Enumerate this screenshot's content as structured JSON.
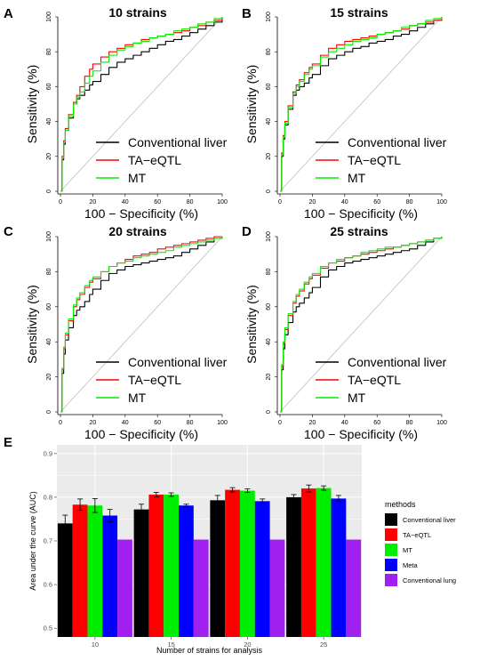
{
  "figure": {
    "colors": {
      "conventional_liver": "#000000",
      "ta_eqtl": "#ff0000",
      "mt": "#00ee00",
      "meta": "#0000ff",
      "conventional_lung": "#a020f0",
      "diagonal": "#bebebe",
      "panel_bg": "#ebebeb",
      "grid": "#ffffff"
    }
  },
  "chart_data": [
    {
      "type": "line",
      "panel": "A",
      "title": "10 strains",
      "xlabel": "100 − Specificity (%)",
      "ylabel": "Sensitivity (%)",
      "xlim": [
        0,
        100
      ],
      "ylim": [
        0,
        100
      ],
      "x_ticks": [
        "0",
        "20",
        "40",
        "60",
        "80",
        "100"
      ],
      "y_ticks": [
        "0",
        "20",
        "40",
        "60",
        "80",
        "100"
      ],
      "legend": [
        "Conventional liver",
        "TA−eQTL",
        "MT"
      ],
      "legend_position": "bottom-right",
      "series": [
        {
          "name": "Conventional liver",
          "color": "#000000",
          "x": [
            0,
            1,
            2,
            3,
            5,
            8,
            10,
            12,
            15,
            18,
            20,
            25,
            30,
            35,
            40,
            45,
            50,
            55,
            60,
            65,
            70,
            75,
            80,
            85,
            90,
            95,
            100
          ],
          "y": [
            0,
            18,
            27,
            35,
            42,
            50,
            53,
            55,
            58,
            61,
            63,
            67,
            71,
            74,
            76,
            78,
            80,
            82,
            84,
            86,
            87,
            89,
            91,
            93,
            95,
            97,
            100
          ]
        },
        {
          "name": "TA−eQTL",
          "color": "#ff0000",
          "x": [
            0,
            1,
            2,
            3,
            5,
            8,
            10,
            12,
            15,
            18,
            20,
            25,
            30,
            35,
            40,
            45,
            50,
            55,
            60,
            65,
            70,
            75,
            80,
            85,
            90,
            95,
            100
          ],
          "y": [
            0,
            20,
            29,
            36,
            44,
            51,
            55,
            60,
            66,
            70,
            73,
            77,
            80,
            82,
            84,
            85,
            87,
            88,
            89,
            90,
            91,
            92,
            94,
            95,
            97,
            98,
            100
          ]
        },
        {
          "name": "MT",
          "color": "#00ee00",
          "x": [
            0,
            1,
            2,
            3,
            5,
            8,
            10,
            12,
            15,
            18,
            20,
            25,
            30,
            35,
            40,
            45,
            50,
            55,
            60,
            65,
            70,
            75,
            80,
            85,
            90,
            95,
            100
          ],
          "y": [
            0,
            19,
            28,
            35,
            43,
            50,
            54,
            57,
            62,
            66,
            69,
            74,
            78,
            81,
            83,
            85,
            86,
            88,
            89,
            90,
            92,
            93,
            94,
            96,
            97,
            99,
            100
          ]
        }
      ]
    },
    {
      "type": "line",
      "panel": "B",
      "title": "15 strains",
      "xlabel": "100 − Specificity (%)",
      "ylabel": "Sensitivity (%)",
      "xlim": [
        0,
        100
      ],
      "ylim": [
        0,
        100
      ],
      "x_ticks": [
        "0",
        "20",
        "40",
        "60",
        "80",
        "100"
      ],
      "y_ticks": [
        "0",
        "20",
        "40",
        "60",
        "80",
        "100"
      ],
      "legend": [
        "Conventional liver",
        "TA−eQTL",
        "MT"
      ],
      "legend_position": "bottom-right",
      "series": [
        {
          "name": "Conventional liver",
          "color": "#000000",
          "x": [
            0,
            1,
            2,
            3,
            5,
            8,
            10,
            12,
            15,
            18,
            20,
            25,
            30,
            35,
            40,
            45,
            50,
            55,
            60,
            65,
            70,
            75,
            80,
            85,
            90,
            95,
            100
          ],
          "y": [
            0,
            20,
            30,
            38,
            47,
            55,
            58,
            60,
            62,
            65,
            67,
            72,
            76,
            78,
            80,
            82,
            83,
            85,
            86,
            87,
            89,
            90,
            92,
            94,
            96,
            98,
            100
          ]
        },
        {
          "name": "TA−eQTL",
          "color": "#ff0000",
          "x": [
            0,
            1,
            2,
            3,
            5,
            8,
            10,
            12,
            15,
            18,
            20,
            25,
            30,
            35,
            40,
            45,
            50,
            55,
            60,
            65,
            70,
            75,
            80,
            85,
            90,
            95,
            100
          ],
          "y": [
            0,
            22,
            32,
            40,
            49,
            57,
            61,
            64,
            68,
            71,
            73,
            78,
            82,
            84,
            86,
            87,
            88,
            89,
            90,
            91,
            92,
            93,
            95,
            96,
            97,
            98,
            100
          ]
        },
        {
          "name": "MT",
          "color": "#00ee00",
          "x": [
            0,
            1,
            2,
            3,
            5,
            8,
            10,
            12,
            15,
            18,
            20,
            25,
            30,
            35,
            40,
            45,
            50,
            55,
            60,
            65,
            70,
            75,
            80,
            85,
            90,
            95,
            100
          ],
          "y": [
            0,
            21,
            31,
            39,
            48,
            56,
            60,
            63,
            67,
            70,
            72,
            77,
            80,
            82,
            84,
            86,
            87,
            88,
            90,
            91,
            92,
            94,
            95,
            96,
            98,
            99,
            100
          ]
        }
      ]
    },
    {
      "type": "line",
      "panel": "C",
      "title": "20 strains",
      "xlabel": "100 − Specificity (%)",
      "ylabel": "Sensitivity (%)",
      "xlim": [
        0,
        100
      ],
      "ylim": [
        0,
        100
      ],
      "x_ticks": [
        "0",
        "20",
        "40",
        "60",
        "80",
        "100"
      ],
      "y_ticks": [
        "0",
        "20",
        "40",
        "60",
        "80",
        "100"
      ],
      "legend": [
        "Conventional liver",
        "TA−eQTL",
        "MT"
      ],
      "legend_position": "bottom-right",
      "series": [
        {
          "name": "Conventional liver",
          "color": "#000000",
          "x": [
            0,
            1,
            2,
            3,
            5,
            8,
            10,
            12,
            15,
            18,
            20,
            25,
            30,
            35,
            40,
            45,
            50,
            55,
            60,
            65,
            70,
            75,
            80,
            85,
            90,
            95,
            100
          ],
          "y": [
            0,
            22,
            33,
            41,
            48,
            55,
            58,
            60,
            63,
            67,
            70,
            75,
            79,
            81,
            83,
            84,
            85,
            86,
            87,
            88,
            89,
            91,
            93,
            95,
            97,
            99,
            100
          ]
        },
        {
          "name": "TA−eQTL",
          "color": "#ff0000",
          "x": [
            0,
            1,
            2,
            3,
            5,
            8,
            10,
            12,
            15,
            18,
            20,
            25,
            30,
            35,
            40,
            45,
            50,
            55,
            60,
            65,
            70,
            75,
            80,
            85,
            90,
            95,
            100
          ],
          "y": [
            0,
            24,
            36,
            44,
            52,
            60,
            64,
            67,
            71,
            74,
            76,
            80,
            83,
            85,
            87,
            89,
            90,
            91,
            93,
            94,
            95,
            96,
            97,
            98,
            99,
            100,
            100
          ]
        },
        {
          "name": "MT",
          "color": "#00ee00",
          "x": [
            0,
            1,
            2,
            3,
            5,
            8,
            10,
            12,
            15,
            18,
            20,
            25,
            30,
            35,
            40,
            45,
            50,
            55,
            60,
            65,
            70,
            75,
            80,
            85,
            90,
            95,
            100
          ],
          "y": [
            0,
            25,
            37,
            45,
            53,
            61,
            65,
            68,
            72,
            75,
            77,
            80,
            83,
            85,
            86,
            88,
            89,
            90,
            91,
            92,
            94,
            95,
            96,
            97,
            98,
            99,
            100
          ]
        }
      ]
    },
    {
      "type": "line",
      "panel": "D",
      "title": "25 strains",
      "xlabel": "100 − Specificity (%)",
      "ylabel": "Sensitivity (%)",
      "xlim": [
        0,
        100
      ],
      "ylim": [
        0,
        100
      ],
      "x_ticks": [
        "0",
        "20",
        "40",
        "60",
        "80",
        "100"
      ],
      "y_ticks": [
        "0",
        "20",
        "40",
        "60",
        "80",
        "100"
      ],
      "legend": [
        "Conventional liver",
        "TA−eQTL",
        "MT"
      ],
      "legend_position": "bottom-right",
      "series": [
        {
          "name": "Conventional liver",
          "color": "#000000",
          "x": [
            0,
            1,
            2,
            3,
            5,
            8,
            10,
            12,
            15,
            18,
            20,
            25,
            30,
            35,
            40,
            45,
            50,
            55,
            60,
            65,
            70,
            75,
            80,
            85,
            90,
            95,
            100
          ],
          "y": [
            0,
            24,
            36,
            44,
            51,
            57,
            60,
            62,
            65,
            68,
            71,
            77,
            81,
            83,
            85,
            86,
            87,
            88,
            89,
            90,
            91,
            92,
            93,
            95,
            97,
            99,
            100
          ]
        },
        {
          "name": "TA−eQTL",
          "color": "#ff0000",
          "x": [
            0,
            1,
            2,
            3,
            5,
            8,
            10,
            12,
            15,
            18,
            20,
            25,
            30,
            35,
            40,
            45,
            50,
            55,
            60,
            65,
            70,
            75,
            80,
            85,
            90,
            95,
            100
          ],
          "y": [
            0,
            26,
            39,
            47,
            55,
            62,
            66,
            69,
            73,
            76,
            78,
            82,
            85,
            86,
            88,
            89,
            90,
            91,
            92,
            93,
            94,
            95,
            96,
            97,
            98,
            99,
            100
          ]
        },
        {
          "name": "MT",
          "color": "#00ee00",
          "x": [
            0,
            1,
            2,
            3,
            5,
            8,
            10,
            12,
            15,
            18,
            20,
            25,
            30,
            35,
            40,
            45,
            50,
            55,
            60,
            65,
            70,
            75,
            80,
            85,
            90,
            95,
            100
          ],
          "y": [
            0,
            27,
            40,
            48,
            56,
            63,
            67,
            70,
            74,
            77,
            79,
            83,
            85,
            87,
            88,
            89,
            91,
            92,
            93,
            94,
            94,
            95,
            96,
            97,
            98,
            99,
            100
          ]
        }
      ]
    },
    {
      "type": "bar",
      "panel": "E",
      "title": "",
      "xlabel": "Number of strains for analysis",
      "ylabel": "Area under the curve (AUC)",
      "categories": [
        "10",
        "15",
        "20",
        "25"
      ],
      "ylim": [
        0.48,
        0.92
      ],
      "y_ticks": [
        "0.5",
        "0.6",
        "0.7",
        "0.8",
        "0.9"
      ],
      "grid": true,
      "legend_title": "methods",
      "legend_position": "right",
      "series": [
        {
          "name": "Conventional liver",
          "color": "#000000",
          "values": [
            0.74,
            0.772,
            0.793,
            0.8
          ],
          "errors": [
            0.019,
            0.012,
            0.011,
            0.006
          ]
        },
        {
          "name": "TA−eQTL",
          "color": "#ff0000",
          "values": [
            0.783,
            0.806,
            0.817,
            0.82
          ],
          "errors": [
            0.013,
            0.005,
            0.005,
            0.008
          ]
        },
        {
          "name": "MT",
          "color": "#00ee00",
          "values": [
            0.781,
            0.806,
            0.815,
            0.821
          ],
          "errors": [
            0.016,
            0.004,
            0.004,
            0.005
          ]
        },
        {
          "name": "Meta",
          "color": "#0000ff",
          "values": [
            0.758,
            0.781,
            0.791,
            0.797
          ],
          "errors": [
            0.014,
            0.003,
            0.005,
            0.007
          ]
        },
        {
          "name": "Conventional lung",
          "color": "#a020f0",
          "values": [
            0.703,
            0.703,
            0.703,
            0.703
          ],
          "errors": [
            0.0,
            0.0,
            0.0,
            0.0
          ]
        }
      ]
    }
  ]
}
